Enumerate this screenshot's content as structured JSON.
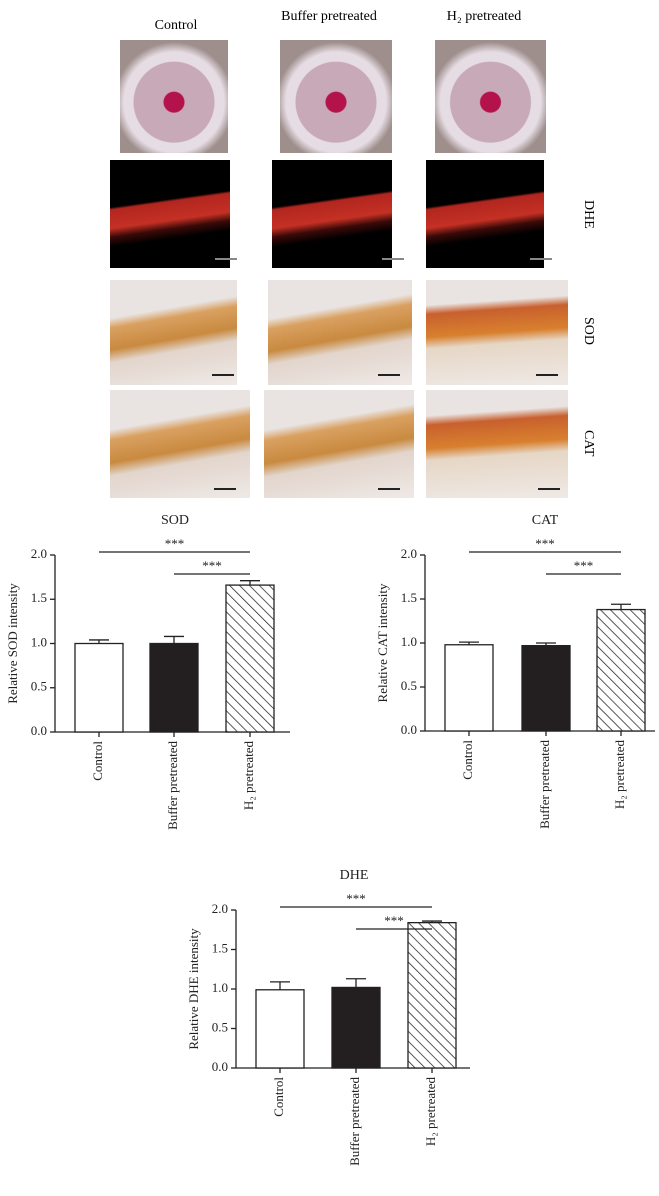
{
  "panels": {
    "columns": [
      "Control",
      "Buffer pretreated",
      "H₂ pretreated"
    ],
    "rows": [
      "DHE",
      "SOD",
      "CAT"
    ]
  },
  "chart_data": [
    {
      "type": "bar",
      "title": "SOD",
      "ylabel": "Relative SOD intensity",
      "categories": [
        "Control",
        "Buffer pretreated",
        "H₂ pretreated"
      ],
      "values": [
        1.0,
        1.0,
        1.66
      ],
      "errors": [
        0.04,
        0.08,
        0.05
      ],
      "colors": [
        "#ffffff",
        "#231f20",
        "#ffffff"
      ],
      "hatched": [
        false,
        false,
        true
      ],
      "ylim": [
        0,
        2
      ],
      "yticks": [
        {
          "value": 0,
          "label": "0.0"
        },
        {
          "value": 0.5,
          "label": "0.5"
        },
        {
          "value": 1,
          "label": "1.0"
        },
        {
          "value": 1.5,
          "label": "1.5"
        },
        {
          "value": 2,
          "label": "2.0"
        }
      ],
      "annotations": [
        "***",
        "***"
      ]
    },
    {
      "type": "bar",
      "title": "CAT",
      "ylabel": "Relative CAT intensity",
      "categories": [
        "Control",
        "Buffer pretreated",
        "H₂ pretreated"
      ],
      "values": [
        0.98,
        0.97,
        1.38
      ],
      "errors": [
        0.03,
        0.03,
        0.06
      ],
      "colors": [
        "#ffffff",
        "#231f20",
        "#ffffff"
      ],
      "hatched": [
        false,
        false,
        true
      ],
      "ylim": [
        0,
        2
      ],
      "yticks": [
        {
          "value": 0,
          "label": "0.0"
        },
        {
          "value": 0.5,
          "label": "0.5"
        },
        {
          "value": 1,
          "label": "1.0"
        },
        {
          "value": 1.5,
          "label": "1.5"
        },
        {
          "value": 2,
          "label": "2.0"
        }
      ],
      "annotations": [
        "***",
        "***"
      ]
    },
    {
      "type": "bar",
      "title": "DHE",
      "ylabel": "Relative DHE intensity",
      "categories": [
        "Control",
        "Buffer pretreated",
        "H₂ pretreated"
      ],
      "values": [
        0.99,
        1.02,
        1.84
      ],
      "errors": [
        0.1,
        0.11,
        0.02
      ],
      "colors": [
        "#ffffff",
        "#231f20",
        "#ffffff"
      ],
      "hatched": [
        false,
        false,
        true
      ],
      "ylim": [
        0,
        2
      ],
      "yticks": [
        {
          "value": 0,
          "label": "0.0"
        },
        {
          "value": 0.5,
          "label": "0.5"
        },
        {
          "value": 1,
          "label": "1.0"
        },
        {
          "value": 1.5,
          "label": "1.5"
        },
        {
          "value": 2,
          "label": "2.0"
        }
      ],
      "annotations": [
        "***",
        "***"
      ]
    }
  ]
}
